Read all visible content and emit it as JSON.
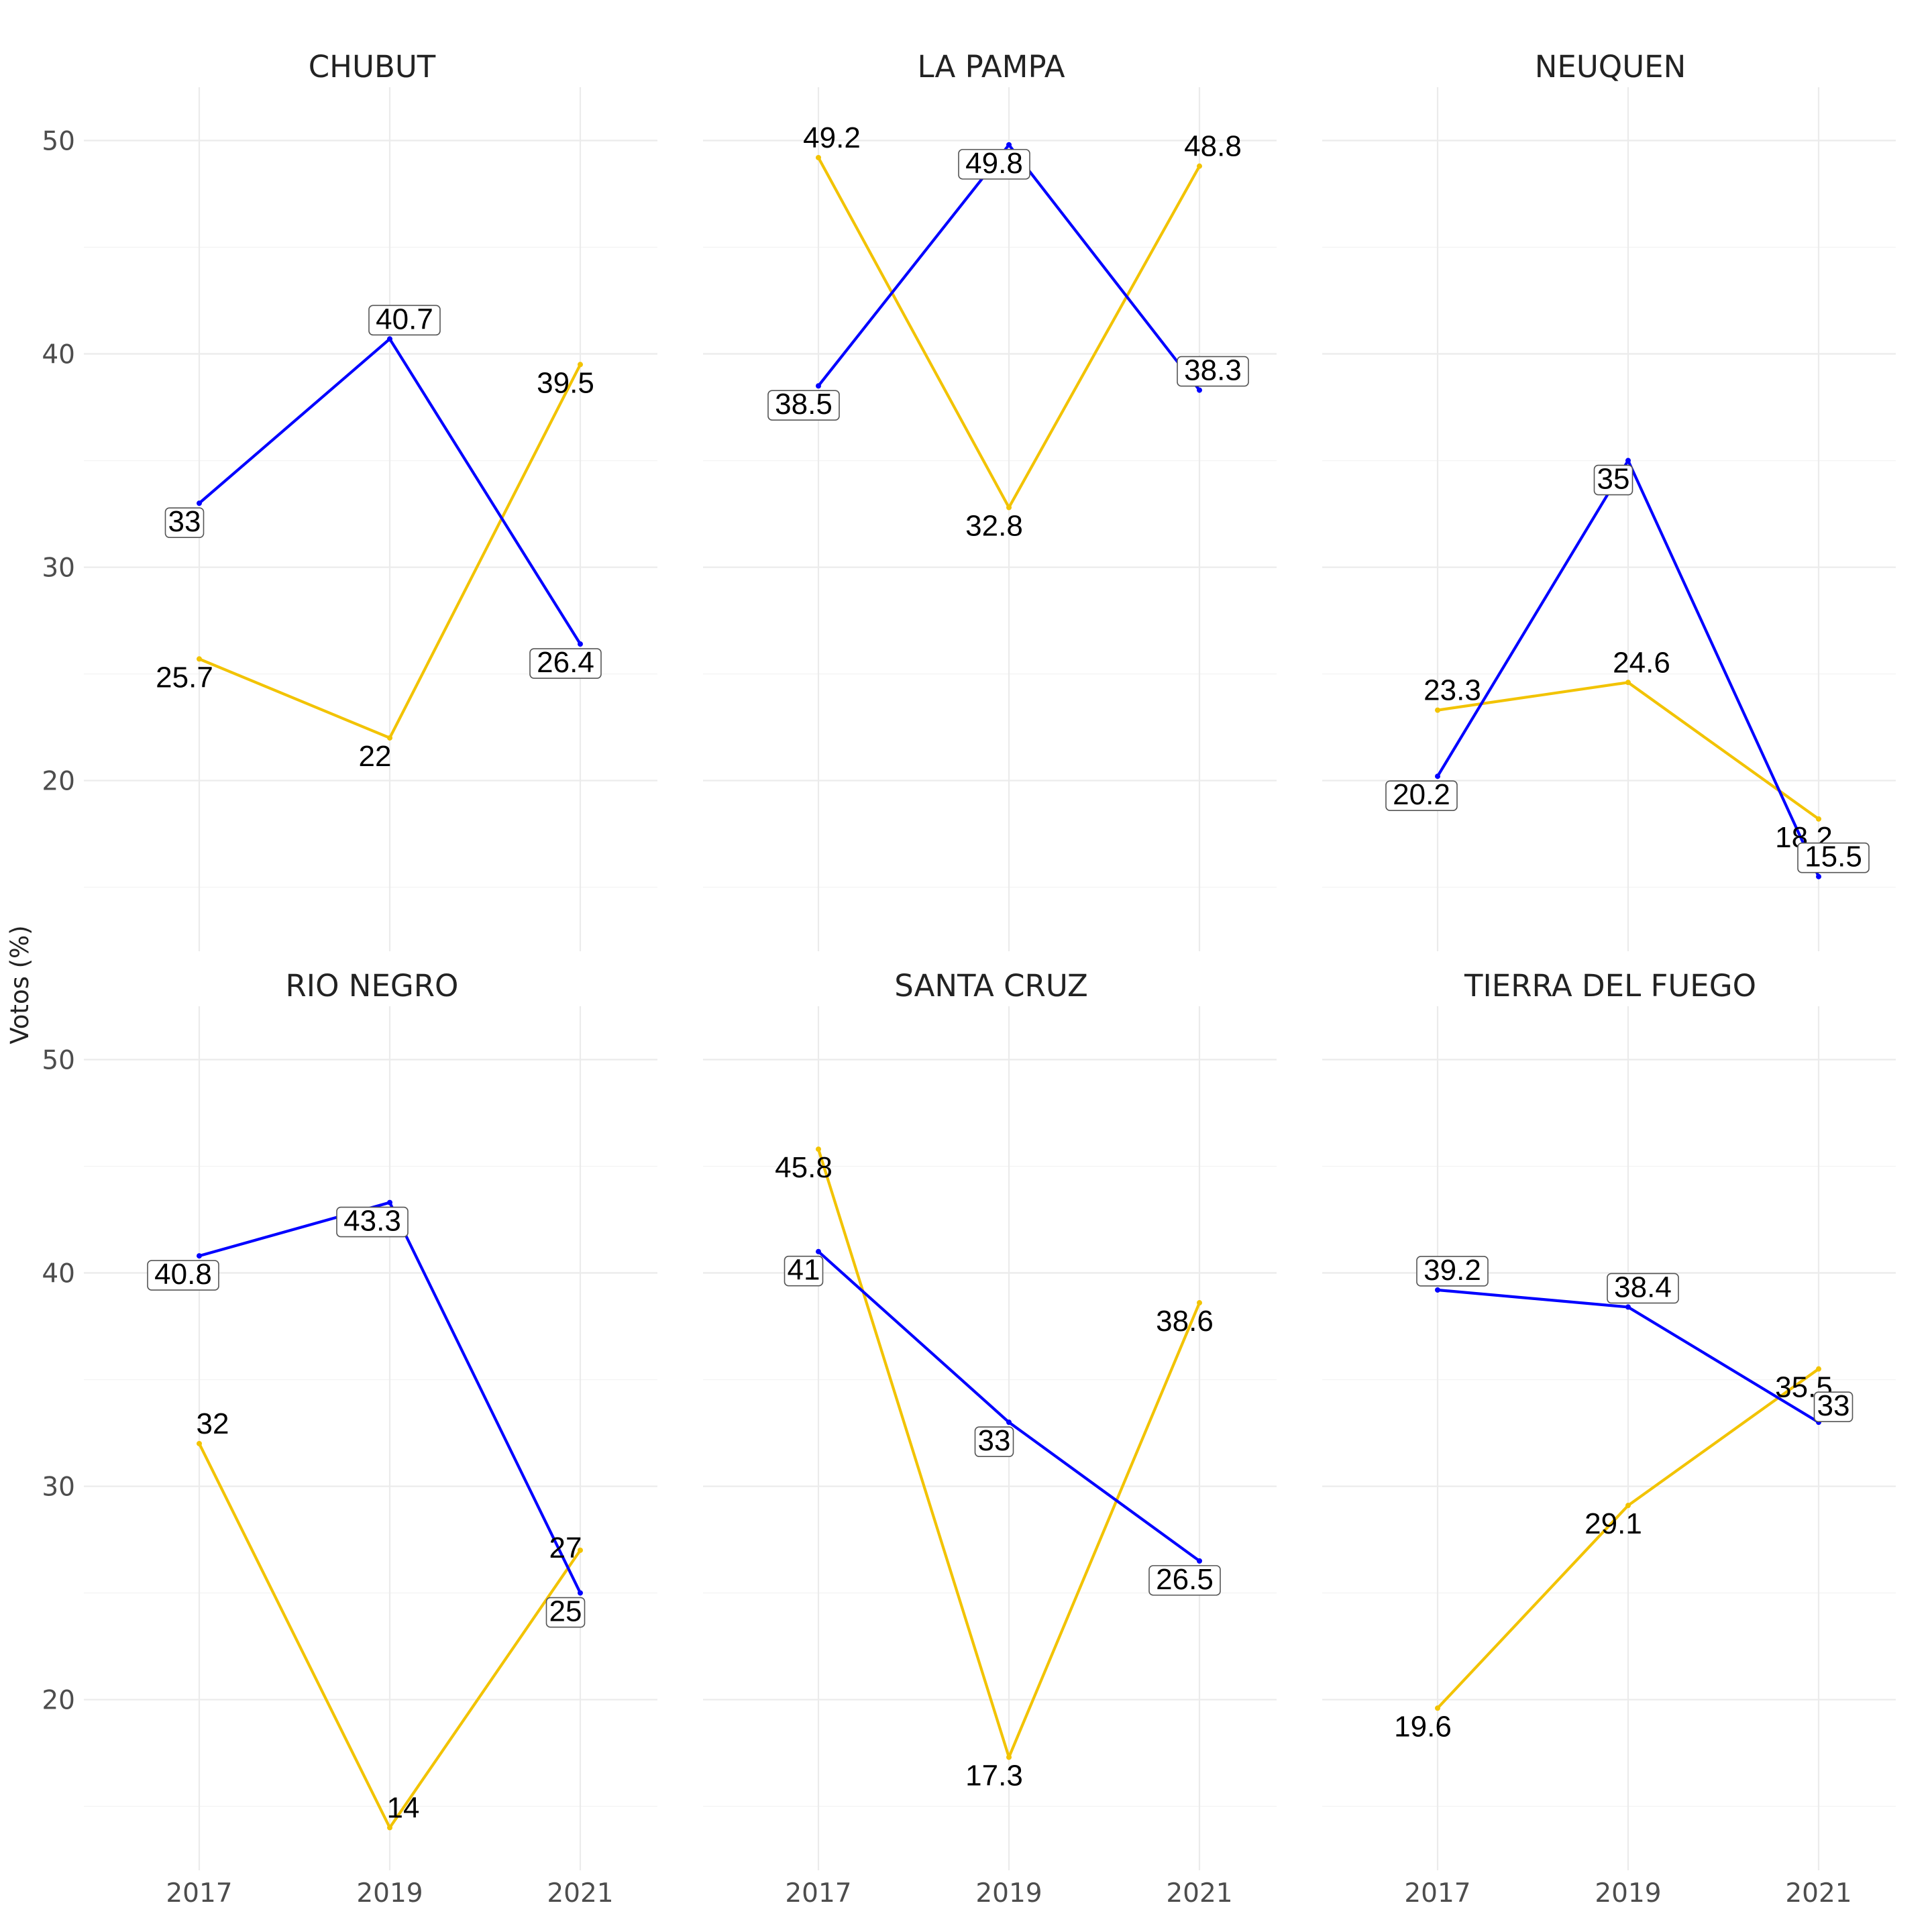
{
  "chart_data": {
    "type": "line",
    "ylabel": "Votos (%)",
    "xlabel": "",
    "x": [
      "2017",
      "2019",
      "2021"
    ],
    "yticks": [
      "20",
      "30",
      "40",
      "50"
    ],
    "ylim": [
      12,
      52.5
    ],
    "grid": true,
    "legend": "none",
    "colors": {
      "blue_series": "#0000ff",
      "yellow_series": "#f2c300"
    },
    "facets": [
      {
        "title": "CHUBUT",
        "series": [
          {
            "color": "#0000ff",
            "labelled_box": true,
            "values": [
              33,
              40.7,
              26.4
            ],
            "labels": [
              "33",
              "40.7",
              "26.4"
            ]
          },
          {
            "color": "#f2c300",
            "labelled_box": false,
            "values": [
              25.7,
              22,
              39.5
            ],
            "labels": [
              "25.7",
              "22",
              "39.5"
            ]
          }
        ]
      },
      {
        "title": "LA PAMPA",
        "series": [
          {
            "color": "#0000ff",
            "labelled_box": true,
            "values": [
              38.5,
              49.8,
              38.3
            ],
            "labels": [
              "38.5",
              "49.8",
              "38.3"
            ]
          },
          {
            "color": "#f2c300",
            "labelled_box": false,
            "values": [
              49.2,
              32.8,
              48.8
            ],
            "labels": [
              "49.2",
              "32.8",
              "48.8"
            ]
          }
        ]
      },
      {
        "title": "NEUQUEN",
        "series": [
          {
            "color": "#0000ff",
            "labelled_box": true,
            "values": [
              20.2,
              35,
              15.5
            ],
            "labels": [
              "20.2",
              "35",
              "15.5"
            ]
          },
          {
            "color": "#f2c300",
            "labelled_box": false,
            "values": [
              23.3,
              24.6,
              18.2
            ],
            "labels": [
              "23.3",
              "24.6",
              "18.2"
            ]
          }
        ]
      },
      {
        "title": "RIO NEGRO",
        "series": [
          {
            "color": "#0000ff",
            "labelled_box": true,
            "values": [
              40.8,
              43.3,
              25
            ],
            "labels": [
              "40.8",
              "43.3",
              "25"
            ]
          },
          {
            "color": "#f2c300",
            "labelled_box": false,
            "values": [
              32,
              14,
              27
            ],
            "labels": [
              "32",
              "14",
              "27"
            ]
          }
        ]
      },
      {
        "title": "SANTA CRUZ",
        "series": [
          {
            "color": "#0000ff",
            "labelled_box": true,
            "values": [
              41,
              33,
              26.5
            ],
            "labels": [
              "41",
              "33",
              "26.5"
            ]
          },
          {
            "color": "#f2c300",
            "labelled_box": false,
            "values": [
              45.8,
              17.3,
              38.6
            ],
            "labels": [
              "45.8",
              "17.3",
              "38.6"
            ]
          }
        ]
      },
      {
        "title": "TIERRA DEL FUEGO",
        "series": [
          {
            "color": "#0000ff",
            "labelled_box": true,
            "values": [
              39.2,
              38.4,
              33
            ],
            "labels": [
              "39.2",
              "38.4",
              "33"
            ]
          },
          {
            "color": "#f2c300",
            "labelled_box": false,
            "values": [
              19.6,
              29.1,
              35.5
            ],
            "labels": [
              "19.6",
              "29.1",
              "35.5"
            ]
          }
        ]
      }
    ]
  }
}
